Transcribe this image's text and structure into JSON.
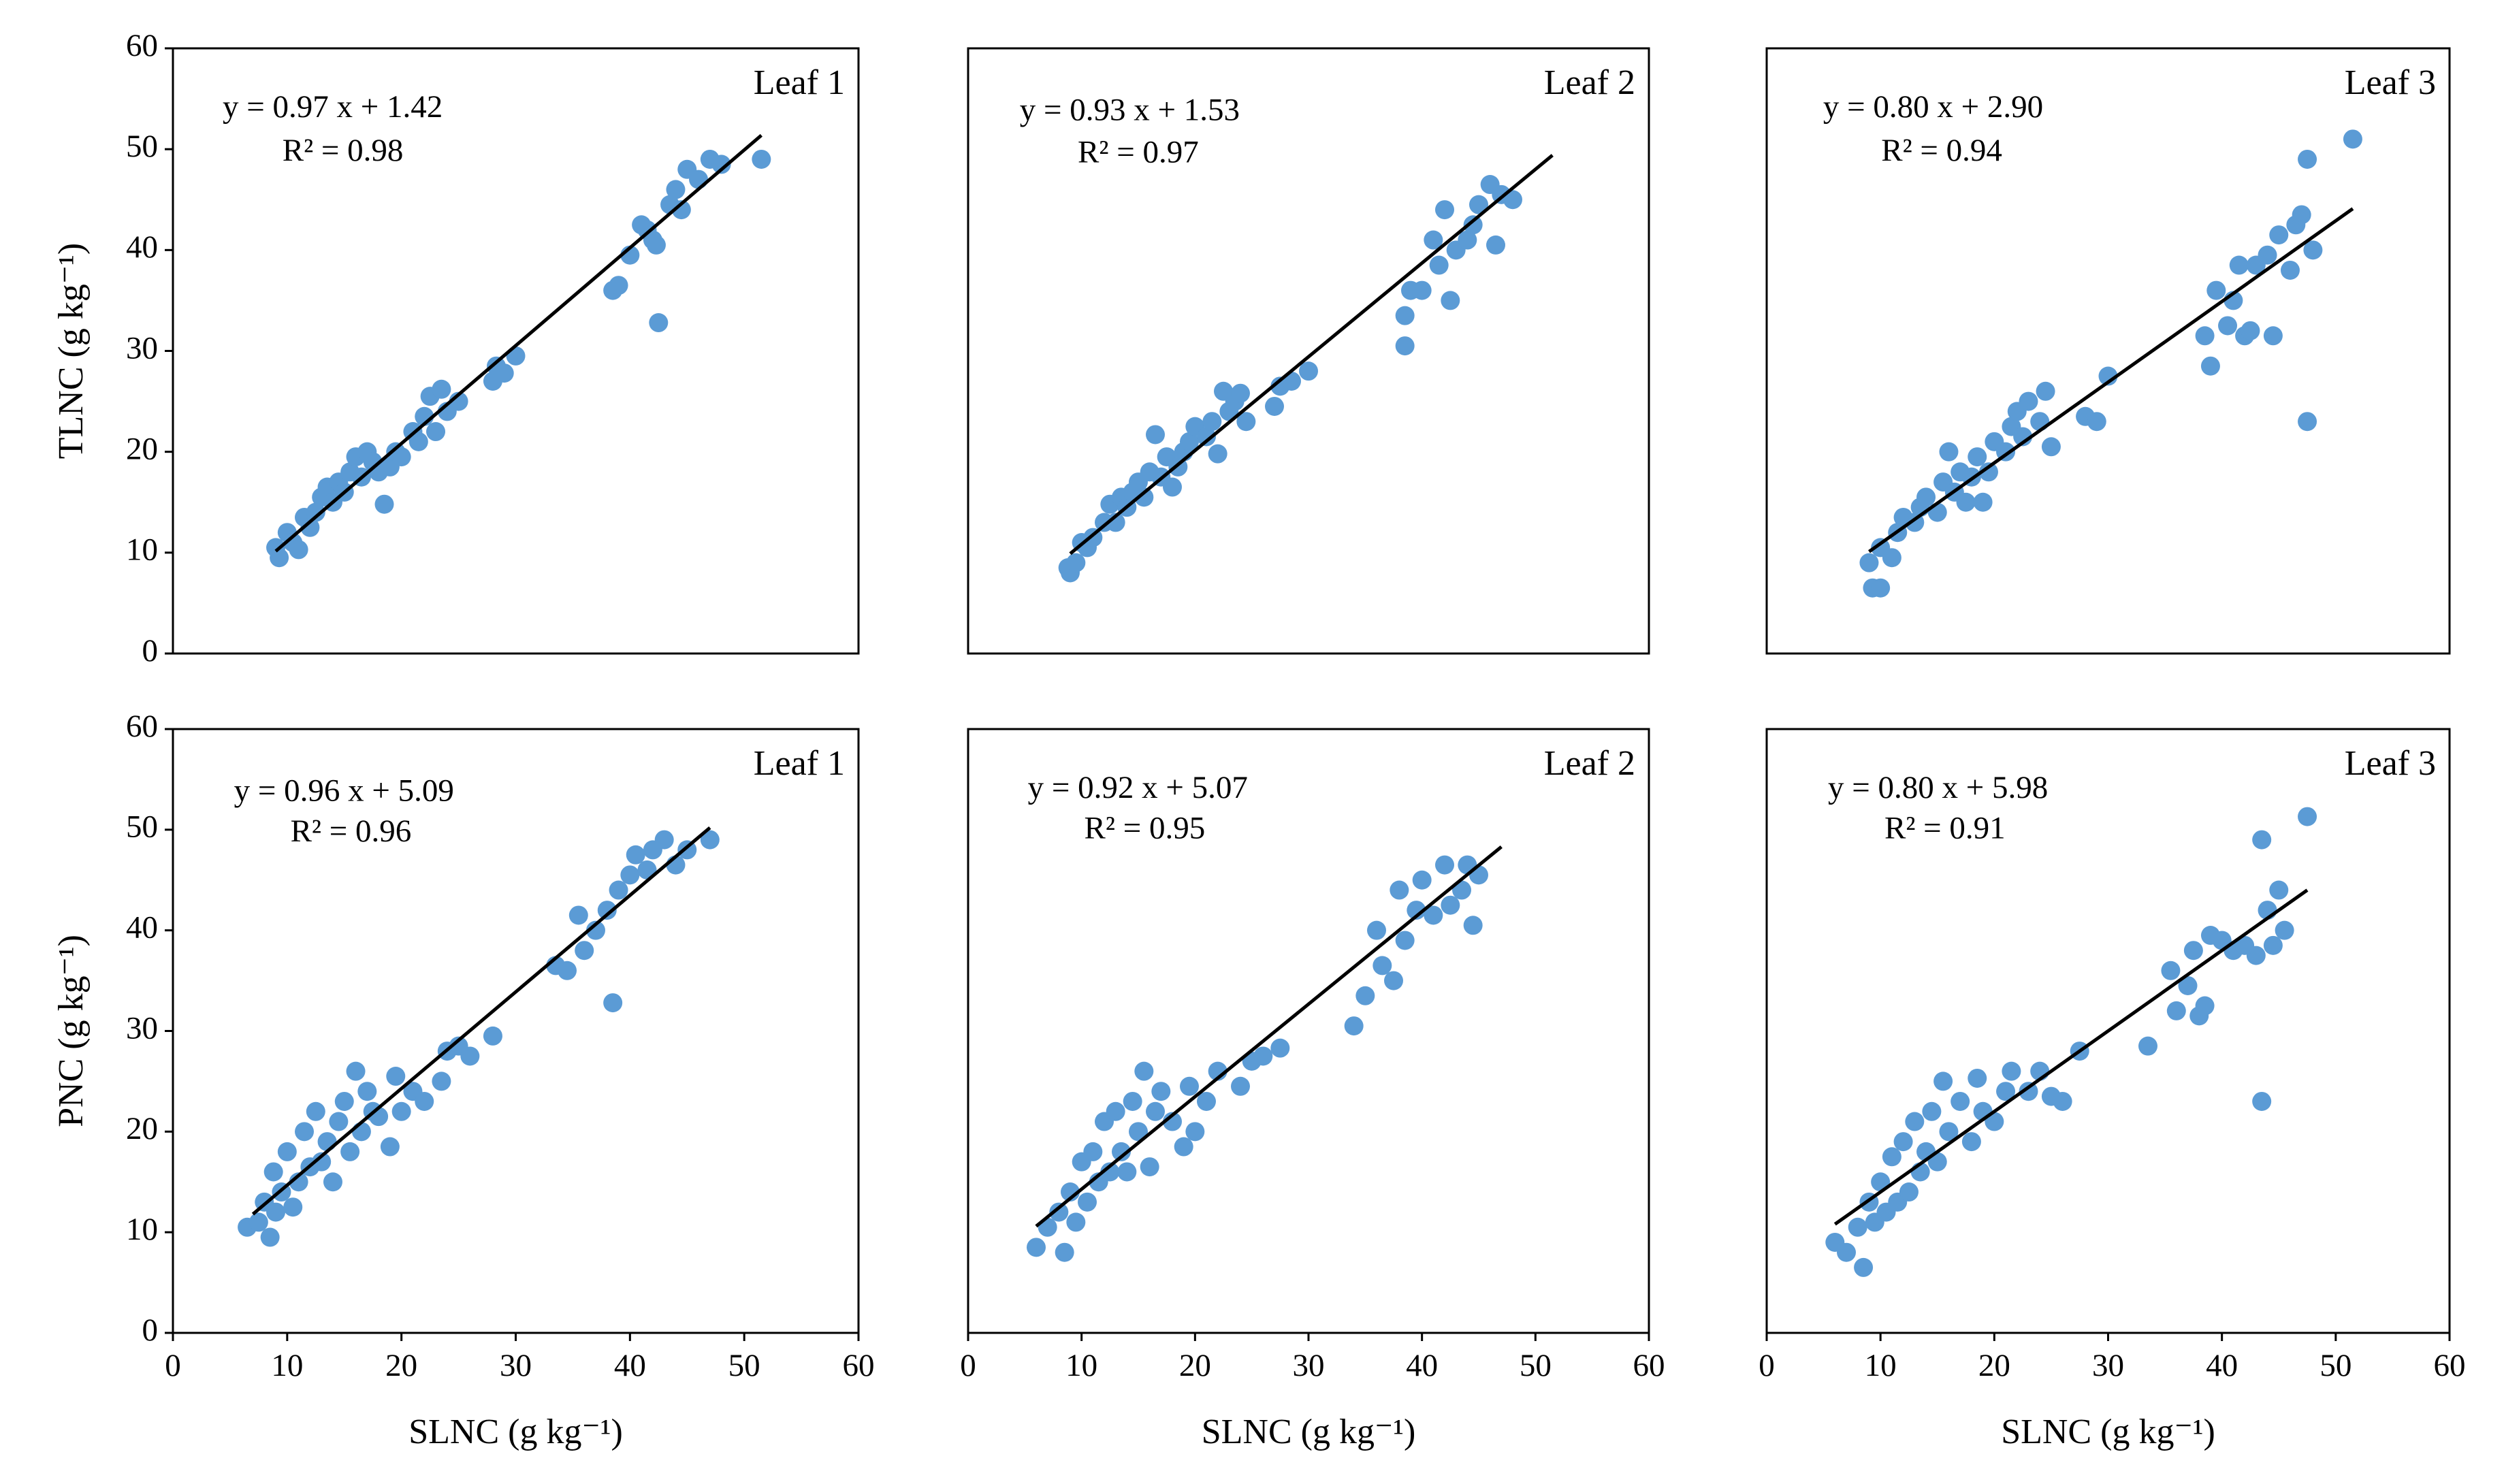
{
  "chart_data": [
    {
      "type": "scatter",
      "title": "Leaf 1",
      "annotations": [
        "y = 0.97 x + 1.42",
        "R² = 0.98"
      ],
      "ylabel": "TLNC (g kg⁻¹)",
      "color": "#5b9bd5",
      "line_color": "#000000",
      "xlim": [
        0,
        60
      ],
      "ylim": [
        0,
        60
      ],
      "yticks": [
        0,
        10,
        20,
        30,
        40,
        50,
        60
      ],
      "x": [
        9,
        9.3,
        10,
        10.5,
        11,
        11.5,
        12,
        12.5,
        13,
        13.5,
        14,
        14.5,
        15,
        15.5,
        16,
        16.5,
        17,
        17.5,
        18,
        18.5,
        19,
        19.5,
        20,
        21,
        21.5,
        22,
        22.5,
        23,
        23.5,
        24,
        25,
        28,
        28.3,
        29,
        30,
        38.5,
        39,
        40,
        41,
        41.5,
        42,
        42.5,
        42.3,
        43.5,
        44,
        44.5,
        45,
        46,
        47,
        48,
        51.5
      ],
      "values": [
        10.5,
        9.5,
        12,
        11,
        10.3,
        13.5,
        12.5,
        14,
        15.5,
        16.5,
        15,
        17,
        16,
        18,
        19.5,
        17.5,
        20,
        19,
        18,
        14.8,
        18.5,
        20,
        19.5,
        22,
        21,
        23.5,
        25.5,
        22,
        26.2,
        24,
        25,
        27,
        28.5,
        27.8,
        29.5,
        36,
        36.5,
        39.5,
        42.5,
        42,
        41,
        32.8,
        40.5,
        44.5,
        46,
        44,
        48,
        47,
        49,
        48.5,
        49
      ],
      "fit_line": {
        "x": [
          9,
          51.5
        ],
        "y": [
          10.15,
          51.38
        ]
      }
    },
    {
      "type": "scatter",
      "title": "Leaf 2",
      "annotations": [
        "y = 0.93 x + 1.53",
        "R² = 0.97"
      ],
      "color": "#5b9bd5",
      "line_color": "#000000",
      "xlim": [
        0,
        60
      ],
      "ylim": [
        0,
        60
      ],
      "x": [
        8.8,
        9,
        9.5,
        10,
        10.5,
        11,
        12,
        12.5,
        13,
        13.5,
        14,
        14.5,
        15,
        15.5,
        16,
        16.5,
        17,
        17.5,
        18,
        18.5,
        19,
        19.5,
        20,
        21,
        21.5,
        22,
        22.5,
        23,
        23.5,
        24,
        24.5,
        27,
        27.5,
        28.5,
        30,
        38.5,
        38.5,
        39,
        40,
        41,
        41.5,
        42,
        42.5,
        43,
        44,
        44.5,
        45,
        46,
        46.5,
        47,
        48
      ],
      "values": [
        8.5,
        8,
        9,
        11,
        10.5,
        11.5,
        13,
        14.8,
        13,
        15.5,
        14.5,
        16,
        17,
        15.5,
        18,
        21.7,
        17.5,
        19.5,
        16.5,
        18.5,
        20,
        21,
        22.5,
        21.5,
        23,
        19.8,
        26,
        24,
        25,
        25.8,
        23,
        24.5,
        26.5,
        27,
        28,
        30.5,
        33.5,
        36,
        36,
        41,
        38.5,
        44,
        35,
        40,
        41,
        42.5,
        44.5,
        46.5,
        40.5,
        45.5,
        45
      ],
      "fit_line": {
        "x": [
          9,
          51.5
        ],
        "y": [
          9.9,
          49.4
        ]
      }
    },
    {
      "type": "scatter",
      "title": "Leaf 3",
      "annotations": [
        "y = 0.80 x + 2.90",
        "R² = 0.94"
      ],
      "color": "#5b9bd5",
      "line_color": "#000000",
      "xlim": [
        0,
        60
      ],
      "ylim": [
        0,
        60
      ],
      "x": [
        9,
        9.3,
        10,
        10,
        11,
        11.5,
        12,
        13,
        13.5,
        14,
        15,
        15.5,
        16,
        16.5,
        17,
        17.5,
        18,
        18.5,
        19,
        19.5,
        20,
        21,
        21.5,
        22,
        22.5,
        23,
        24,
        24.5,
        25,
        28,
        29,
        30,
        38.5,
        39,
        39.5,
        40.5,
        41,
        41.5,
        42,
        42.5,
        43,
        44,
        44.5,
        45,
        46,
        46.5,
        47,
        47.5,
        47.5,
        48,
        51.5
      ],
      "values": [
        9,
        6.5,
        6.5,
        10.5,
        9.5,
        12,
        13.5,
        13,
        14.5,
        15.5,
        14,
        17,
        20,
        16,
        18,
        15,
        17.5,
        19.5,
        15,
        18,
        21,
        20,
        22.5,
        24,
        21.5,
        25,
        23,
        26,
        20.5,
        23.5,
        23,
        27.5,
        31.5,
        28.5,
        36,
        32.5,
        35,
        38.5,
        31.5,
        32,
        38.5,
        39.5,
        31.5,
        41.5,
        38,
        42.5,
        43.5,
        49,
        23,
        40,
        51
      ],
      "fit_line": {
        "x": [
          9,
          51.5
        ],
        "y": [
          10.1,
          44.1
        ]
      }
    },
    {
      "type": "scatter",
      "title": "Leaf 1",
      "annotations": [
        "y = 0.96 x + 5.09",
        "R² = 0.96"
      ],
      "ylabel": "PNC (g kg⁻¹)",
      "xlabel": "SLNC (g kg⁻¹)",
      "color": "#5b9bd5",
      "line_color": "#000000",
      "xlim": [
        0,
        60
      ],
      "ylim": [
        0,
        60
      ],
      "xticks": [
        0,
        10,
        20,
        30,
        40,
        50,
        60
      ],
      "yticks": [
        0,
        10,
        20,
        30,
        40,
        50,
        60
      ],
      "x": [
        6.5,
        7.5,
        8,
        8.5,
        8.8,
        9,
        9.5,
        10,
        10.5,
        11,
        11.5,
        12,
        12.5,
        13,
        13.5,
        14,
        14.5,
        15,
        15.5,
        16,
        16.5,
        17,
        17.5,
        18,
        19,
        19.5,
        20,
        21,
        22,
        23.5,
        24,
        25,
        26,
        28,
        33.5,
        34.5,
        35.5,
        36,
        37,
        38,
        38.5,
        39,
        40,
        40.5,
        41.5,
        42,
        43,
        44,
        45,
        47
      ],
      "values": [
        10.5,
        11,
        13,
        9.5,
        16,
        12,
        14,
        18,
        12.5,
        15,
        20,
        16.5,
        22,
        17,
        19,
        15,
        21,
        23,
        18,
        26,
        20,
        24,
        22,
        21.5,
        18.5,
        25.5,
        22,
        24,
        23,
        25,
        28,
        28.5,
        27.5,
        29.5,
        36.5,
        36,
        41.5,
        38,
        40,
        42,
        32.8,
        44,
        45.5,
        47.5,
        46,
        48,
        49,
        46.5,
        48,
        49
      ],
      "fit_line": {
        "x": [
          7,
          47
        ],
        "y": [
          11.8,
          50.2
        ]
      }
    },
    {
      "type": "scatter",
      "title": "Leaf 2",
      "annotations": [
        "y = 0.92 x + 5.07",
        "R² = 0.95"
      ],
      "xlabel": "SLNC (g kg⁻¹)",
      "color": "#5b9bd5",
      "line_color": "#000000",
      "xlim": [
        0,
        60
      ],
      "ylim": [
        0,
        60
      ],
      "xticks": [
        0,
        10,
        20,
        30,
        40,
        50,
        60
      ],
      "x": [
        6,
        7,
        8,
        8.5,
        9,
        9.5,
        10,
        10.5,
        11,
        11.5,
        12,
        12.5,
        13,
        13.5,
        14,
        14.5,
        15,
        15.5,
        16,
        16.5,
        17,
        18,
        19,
        19.5,
        20,
        21,
        22,
        24,
        25,
        26,
        27.5,
        34,
        35,
        36,
        36.5,
        37.5,
        38,
        38.5,
        39.5,
        40,
        41,
        42,
        42.5,
        43.5,
        44,
        44.5,
        45
      ],
      "values": [
        8.5,
        10.5,
        12,
        8,
        14,
        11,
        17,
        13,
        18,
        15,
        21,
        16,
        22,
        18,
        16,
        23,
        20,
        26,
        16.5,
        22,
        24,
        21,
        18.5,
        24.5,
        20,
        23,
        26,
        24.5,
        27,
        27.5,
        28.3,
        30.5,
        33.5,
        40,
        36.5,
        35,
        44,
        39,
        42,
        45,
        41.5,
        46.5,
        42.5,
        44,
        46.5,
        40.5,
        45.5
      ],
      "fit_line": {
        "x": [
          6,
          47
        ],
        "y": [
          10.6,
          48.3
        ]
      }
    },
    {
      "type": "scatter",
      "title": "Leaf 3",
      "annotations": [
        "y = 0.80 x + 5.98",
        "R² = 0.91"
      ],
      "xlabel": "SLNC (g kg⁻¹)",
      "color": "#5b9bd5",
      "line_color": "#000000",
      "xlim": [
        0,
        60
      ],
      "ylim": [
        0,
        60
      ],
      "xticks": [
        0,
        10,
        20,
        30,
        40,
        50,
        60
      ],
      "x": [
        6,
        7,
        8,
        8.5,
        9,
        9.5,
        10,
        10.5,
        11,
        11.5,
        12,
        12.5,
        13,
        13.5,
        14,
        14.5,
        15,
        15.5,
        16,
        17,
        18,
        18.5,
        19,
        20,
        21,
        21.5,
        23,
        24,
        25,
        26,
        27.5,
        33.5,
        35.5,
        36,
        37,
        37.5,
        38,
        38.5,
        39,
        40,
        41,
        42,
        43,
        43.5,
        43.5,
        44,
        44.5,
        45,
        45.5,
        47.5
      ],
      "values": [
        9,
        8,
        10.5,
        6.5,
        13,
        11,
        15,
        12,
        17.5,
        13,
        19,
        14,
        21,
        16,
        18,
        22,
        17,
        25,
        20,
        23,
        19,
        25.3,
        22,
        21,
        24,
        26,
        24,
        26,
        23.5,
        23,
        28,
        28.5,
        36,
        32,
        34.5,
        38,
        31.5,
        32.5,
        39.5,
        39,
        38,
        38.5,
        37.5,
        23,
        49,
        42,
        38.5,
        44,
        40,
        51.3
      ],
      "fit_line": {
        "x": [
          6,
          47.5
        ],
        "y": [
          10.8,
          44
        ]
      }
    }
  ]
}
